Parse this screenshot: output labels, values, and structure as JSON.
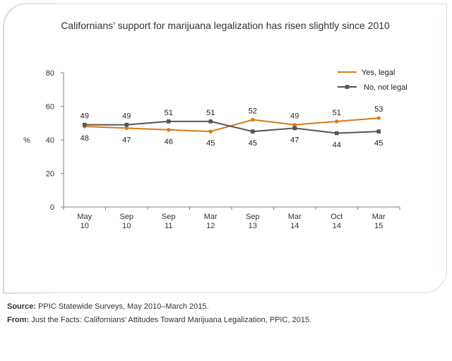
{
  "chart_data": {
    "type": "line",
    "title": "Californians’ support for marijuana legalization has risen slightly since 2010",
    "ylabel": "%",
    "xlabel": "",
    "ylim": [
      0,
      80
    ],
    "yticks": [
      "0",
      "20",
      "40",
      "60",
      "80"
    ],
    "categories": [
      {
        "top": "May",
        "bottom": "10"
      },
      {
        "top": "Sep",
        "bottom": "10"
      },
      {
        "top": "Sep",
        "bottom": "11"
      },
      {
        "top": "Mar",
        "bottom": "12"
      },
      {
        "top": "Sep",
        "bottom": "13"
      },
      {
        "top": "Mar",
        "bottom": "14"
      },
      {
        "top": "Oct",
        "bottom": "14"
      },
      {
        "top": "Mar",
        "bottom": "15"
      }
    ],
    "series": [
      {
        "name": "Yes, legal",
        "values": [
          48,
          47,
          46,
          45,
          52,
          49,
          51,
          53
        ],
        "color": "#d97a12",
        "marker": "circle"
      },
      {
        "name": "No, not legal",
        "values": [
          49,
          49,
          51,
          51,
          45,
          47,
          44,
          45
        ],
        "color": "#555555",
        "marker": "square"
      }
    ],
    "legend_position": "top-right",
    "grid": false
  },
  "footer": {
    "source_label": "Source:",
    "source_text": " PPIC Statewide Surveys, May 2010–March 2015.",
    "from_label": "From:",
    "from_text": " Just the Facts: Californians’ Attitudes Toward Marijuana Legalization, PPIC, 2015."
  }
}
